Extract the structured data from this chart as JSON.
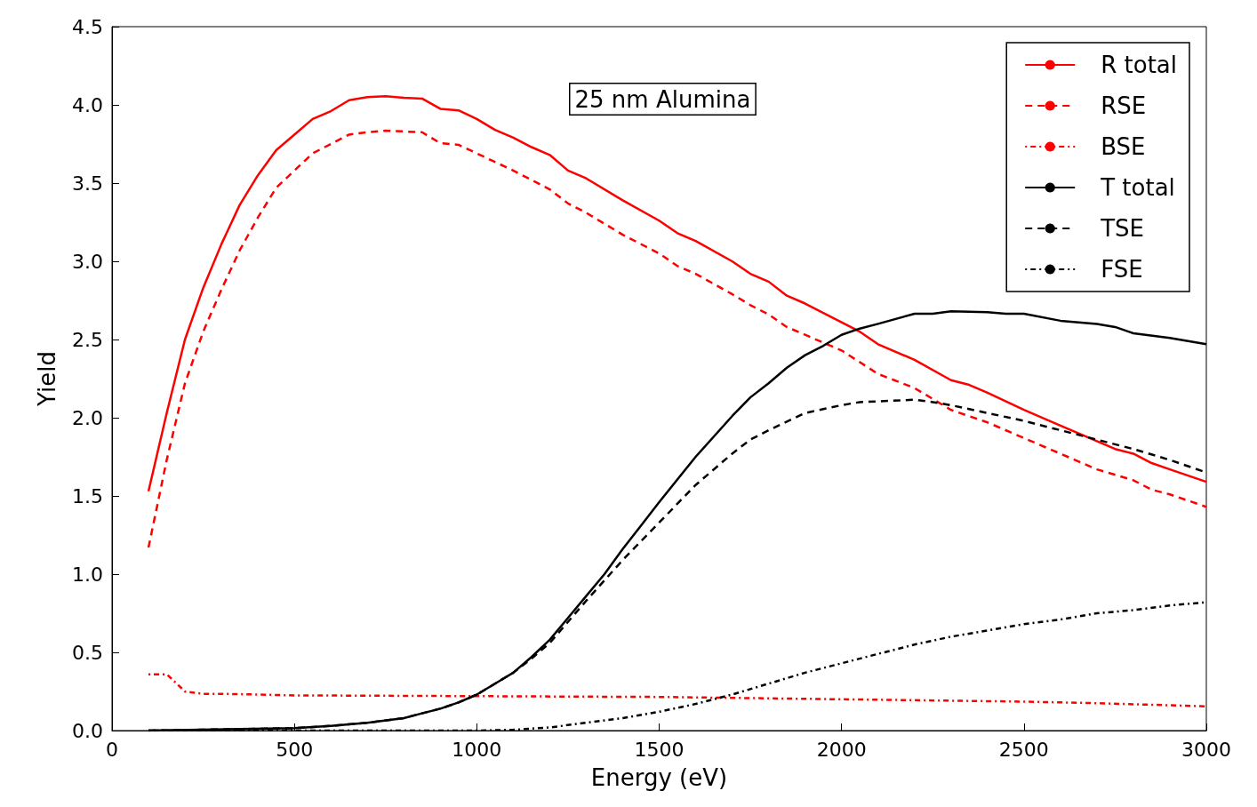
{
  "chart_data": {
    "type": "line",
    "xlabel": "Energy (eV)",
    "ylabel": "Yield",
    "annotations": [
      "25 nm Alumina"
    ],
    "xlim": [
      0,
      3000
    ],
    "xticks": [
      0,
      500,
      1000,
      1500,
      2000,
      2500,
      3000
    ],
    "ylim": [
      0,
      4.5
    ],
    "yticks": [
      {
        "value": 0,
        "label": "0.0"
      },
      0.5,
      {
        "value": 1,
        "label": "1.0"
      },
      1.5,
      {
        "value": 2,
        "label": "2.0"
      },
      2.5,
      {
        "value": 3,
        "label": "3.0"
      },
      3.5,
      {
        "value": 4,
        "label": "4.0"
      },
      4.5
    ],
    "grid": false,
    "legend": "top right",
    "marker": "none",
    "series": [
      {
        "name": "R total",
        "color": "#ff0000",
        "line_style": "solid",
        "x": [
          100,
          150,
          200,
          250,
          300,
          350,
          400,
          450,
          500,
          550,
          600,
          650,
          700,
          750,
          800,
          850,
          900,
          950,
          1000,
          1050,
          1100,
          1150,
          1200,
          1250,
          1300,
          1400,
          1500,
          1550,
          1600,
          1700,
          1750,
          1800,
          1850,
          1900,
          2000,
          2050,
          2100,
          2200,
          2300,
          2350,
          2400,
          2500,
          2600,
          2700,
          2750,
          2800,
          2850,
          2900,
          3000
        ],
        "values": [
          1.53,
          2.03,
          2.5,
          2.83,
          3.11,
          3.36,
          3.55,
          3.71,
          3.81,
          3.91,
          3.96,
          4.03,
          4.05,
          4.055,
          4.045,
          4.04,
          3.975,
          3.965,
          3.91,
          3.84,
          3.79,
          3.73,
          3.68,
          3.58,
          3.53,
          3.39,
          3.26,
          3.18,
          3.13,
          3.0,
          2.92,
          2.87,
          2.78,
          2.73,
          2.61,
          2.55,
          2.47,
          2.37,
          2.24,
          2.21,
          2.16,
          2.05,
          1.95,
          1.85,
          1.8,
          1.77,
          1.71,
          1.67,
          1.59
        ]
      },
      {
        "name": "RSE",
        "color": "#ff0000",
        "line_style": "dashed",
        "x": [
          100,
          150,
          200,
          250,
          300,
          350,
          400,
          450,
          500,
          550,
          600,
          650,
          700,
          750,
          800,
          850,
          900,
          950,
          1000,
          1100,
          1200,
          1250,
          1300,
          1400,
          1500,
          1550,
          1600,
          1700,
          1750,
          1800,
          1850,
          1900,
          2000,
          2100,
          2200,
          2300,
          2400,
          2500,
          2600,
          2700,
          2800,
          2850,
          2900,
          3000
        ],
        "values": [
          1.17,
          1.73,
          2.22,
          2.55,
          2.82,
          3.07,
          3.28,
          3.47,
          3.58,
          3.69,
          3.75,
          3.81,
          3.825,
          3.835,
          3.83,
          3.825,
          3.755,
          3.745,
          3.69,
          3.58,
          3.46,
          3.37,
          3.31,
          3.17,
          3.05,
          2.97,
          2.92,
          2.79,
          2.72,
          2.66,
          2.58,
          2.53,
          2.43,
          2.28,
          2.19,
          2.05,
          1.97,
          1.87,
          1.77,
          1.67,
          1.6,
          1.54,
          1.51,
          1.43
        ]
      },
      {
        "name": "BSE",
        "color": "#ff0000",
        "line_style": "dotted",
        "x": [
          100,
          150,
          200,
          250,
          300,
          500,
          1000,
          1500,
          2000,
          2500,
          2700,
          3000
        ],
        "values": [
          0.36,
          0.36,
          0.25,
          0.235,
          0.235,
          0.225,
          0.22,
          0.215,
          0.2,
          0.185,
          0.175,
          0.155
        ]
      },
      {
        "name": "T total",
        "color": "#000000",
        "line_style": "solid",
        "x": [
          100,
          500,
          600,
          700,
          800,
          850,
          900,
          950,
          1000,
          1050,
          1100,
          1150,
          1200,
          1250,
          1300,
          1350,
          1400,
          1450,
          1500,
          1600,
          1700,
          1750,
          1800,
          1850,
          1900,
          1950,
          2000,
          2050,
          2100,
          2200,
          2250,
          2300,
          2400,
          2450,
          2500,
          2600,
          2700,
          2750,
          2800,
          2900,
          3000
        ],
        "values": [
          0,
          0.015,
          0.03,
          0.05,
          0.08,
          0.11,
          0.14,
          0.18,
          0.23,
          0.3,
          0.37,
          0.47,
          0.58,
          0.72,
          0.86,
          1.0,
          1.16,
          1.31,
          1.46,
          1.75,
          2.01,
          2.13,
          2.22,
          2.32,
          2.4,
          2.46,
          2.53,
          2.57,
          2.6,
          2.665,
          2.665,
          2.68,
          2.675,
          2.665,
          2.665,
          2.62,
          2.6,
          2.58,
          2.54,
          2.51,
          2.47
        ]
      },
      {
        "name": "TSE",
        "color": "#000000",
        "line_style": "dashed",
        "x": [
          100,
          500,
          600,
          700,
          800,
          850,
          900,
          950,
          1000,
          1050,
          1100,
          1150,
          1200,
          1300,
          1400,
          1500,
          1600,
          1700,
          1750,
          1800,
          1900,
          2000,
          2050,
          2200,
          2250,
          2300,
          2400,
          2500,
          2600,
          2700,
          2800,
          2900,
          3000
        ],
        "values": [
          0,
          0.015,
          0.03,
          0.05,
          0.08,
          0.11,
          0.14,
          0.18,
          0.23,
          0.3,
          0.37,
          0.46,
          0.56,
          0.83,
          1.09,
          1.33,
          1.57,
          1.77,
          1.86,
          1.92,
          2.03,
          2.08,
          2.1,
          2.115,
          2.1,
          2.08,
          2.03,
          1.98,
          1.92,
          1.86,
          1.8,
          1.73,
          1.65
        ]
      },
      {
        "name": "FSE",
        "color": "#000000",
        "line_style": "dotted",
        "x": [
          100,
          1000,
          1100,
          1200,
          1300,
          1400,
          1500,
          1600,
          1700,
          1800,
          1900,
          2000,
          2100,
          2200,
          2300,
          2400,
          2500,
          2600,
          2700,
          2800,
          2900,
          3000
        ],
        "values": [
          0,
          0,
          0.005,
          0.02,
          0.05,
          0.08,
          0.12,
          0.17,
          0.23,
          0.3,
          0.37,
          0.43,
          0.49,
          0.55,
          0.6,
          0.64,
          0.68,
          0.71,
          0.75,
          0.77,
          0.8,
          0.82
        ]
      }
    ]
  }
}
